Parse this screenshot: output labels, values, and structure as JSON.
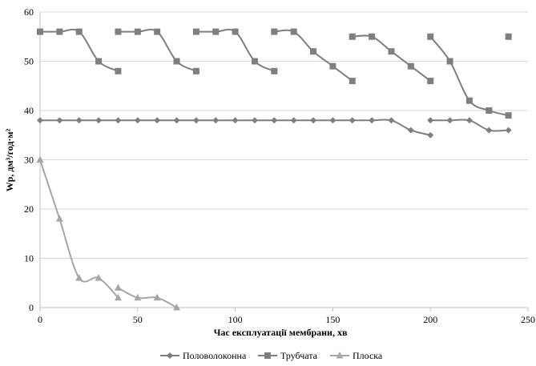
{
  "chart_data": {
    "type": "line",
    "xlabel": "Час експлуатації мембрани, хв",
    "ylabel": "Wp, дм³/год·м²",
    "xlim": [
      0,
      250
    ],
    "ylim": [
      0,
      60
    ],
    "xticks": [
      "0",
      "50",
      "100",
      "150",
      "200",
      "250"
    ],
    "yticks": [
      "0",
      "10",
      "20",
      "30",
      "40",
      "50",
      "60"
    ],
    "grid": true,
    "legend_position": "bottom",
    "series": [
      {
        "name": "Половолоконна",
        "marker": "diamond",
        "color": "#7f7f7f",
        "segments": [
          [
            [
              0,
              38
            ],
            [
              10,
              38
            ],
            [
              20,
              38
            ],
            [
              30,
              38
            ],
            [
              40,
              38
            ],
            [
              50,
              38
            ],
            [
              60,
              38
            ],
            [
              70,
              38
            ],
            [
              80,
              38
            ],
            [
              90,
              38
            ],
            [
              100,
              38
            ],
            [
              110,
              38
            ],
            [
              120,
              38
            ],
            [
              130,
              38
            ],
            [
              140,
              38
            ],
            [
              150,
              38
            ],
            [
              160,
              38
            ],
            [
              170,
              38
            ],
            [
              180,
              38
            ],
            [
              190,
              36
            ],
            [
              200,
              35
            ]
          ],
          [
            [
              200,
              38
            ],
            [
              210,
              38
            ],
            [
              220,
              38
            ],
            [
              230,
              36
            ],
            [
              240,
              36
            ]
          ]
        ]
      },
      {
        "name": "Трубчата",
        "marker": "square",
        "color": "#7f7f7f",
        "segments": [
          [
            [
              0,
              56
            ],
            [
              10,
              56
            ],
            [
              20,
              56
            ],
            [
              30,
              50
            ],
            [
              40,
              48
            ]
          ],
          [
            [
              40,
              56
            ],
            [
              50,
              56
            ],
            [
              60,
              56
            ],
            [
              70,
              50
            ],
            [
              80,
              48
            ]
          ],
          [
            [
              80,
              56
            ],
            [
              90,
              56
            ],
            [
              100,
              56
            ],
            [
              110,
              50
            ],
            [
              120,
              48
            ]
          ],
          [
            [
              120,
              56
            ],
            [
              130,
              56
            ],
            [
              140,
              52
            ],
            [
              150,
              49
            ],
            [
              160,
              46
            ]
          ],
          [
            [
              160,
              55
            ],
            [
              170,
              55
            ],
            [
              180,
              52
            ],
            [
              190,
              49
            ],
            [
              200,
              46
            ]
          ],
          [
            [
              200,
              55
            ],
            [
              210,
              50
            ],
            [
              220,
              42
            ],
            [
              230,
              40
            ],
            [
              240,
              39
            ]
          ],
          [
            [
              240,
              55
            ]
          ]
        ]
      },
      {
        "name": "Плоска",
        "marker": "triangle",
        "color": "#a6a6a6",
        "segments": [
          [
            [
              0,
              30
            ],
            [
              10,
              18
            ],
            [
              20,
              6
            ],
            [
              30,
              6
            ],
            [
              40,
              2
            ]
          ],
          [
            [
              40,
              4
            ],
            [
              50,
              2
            ],
            [
              60,
              2
            ],
            [
              70,
              0
            ]
          ]
        ]
      }
    ]
  }
}
